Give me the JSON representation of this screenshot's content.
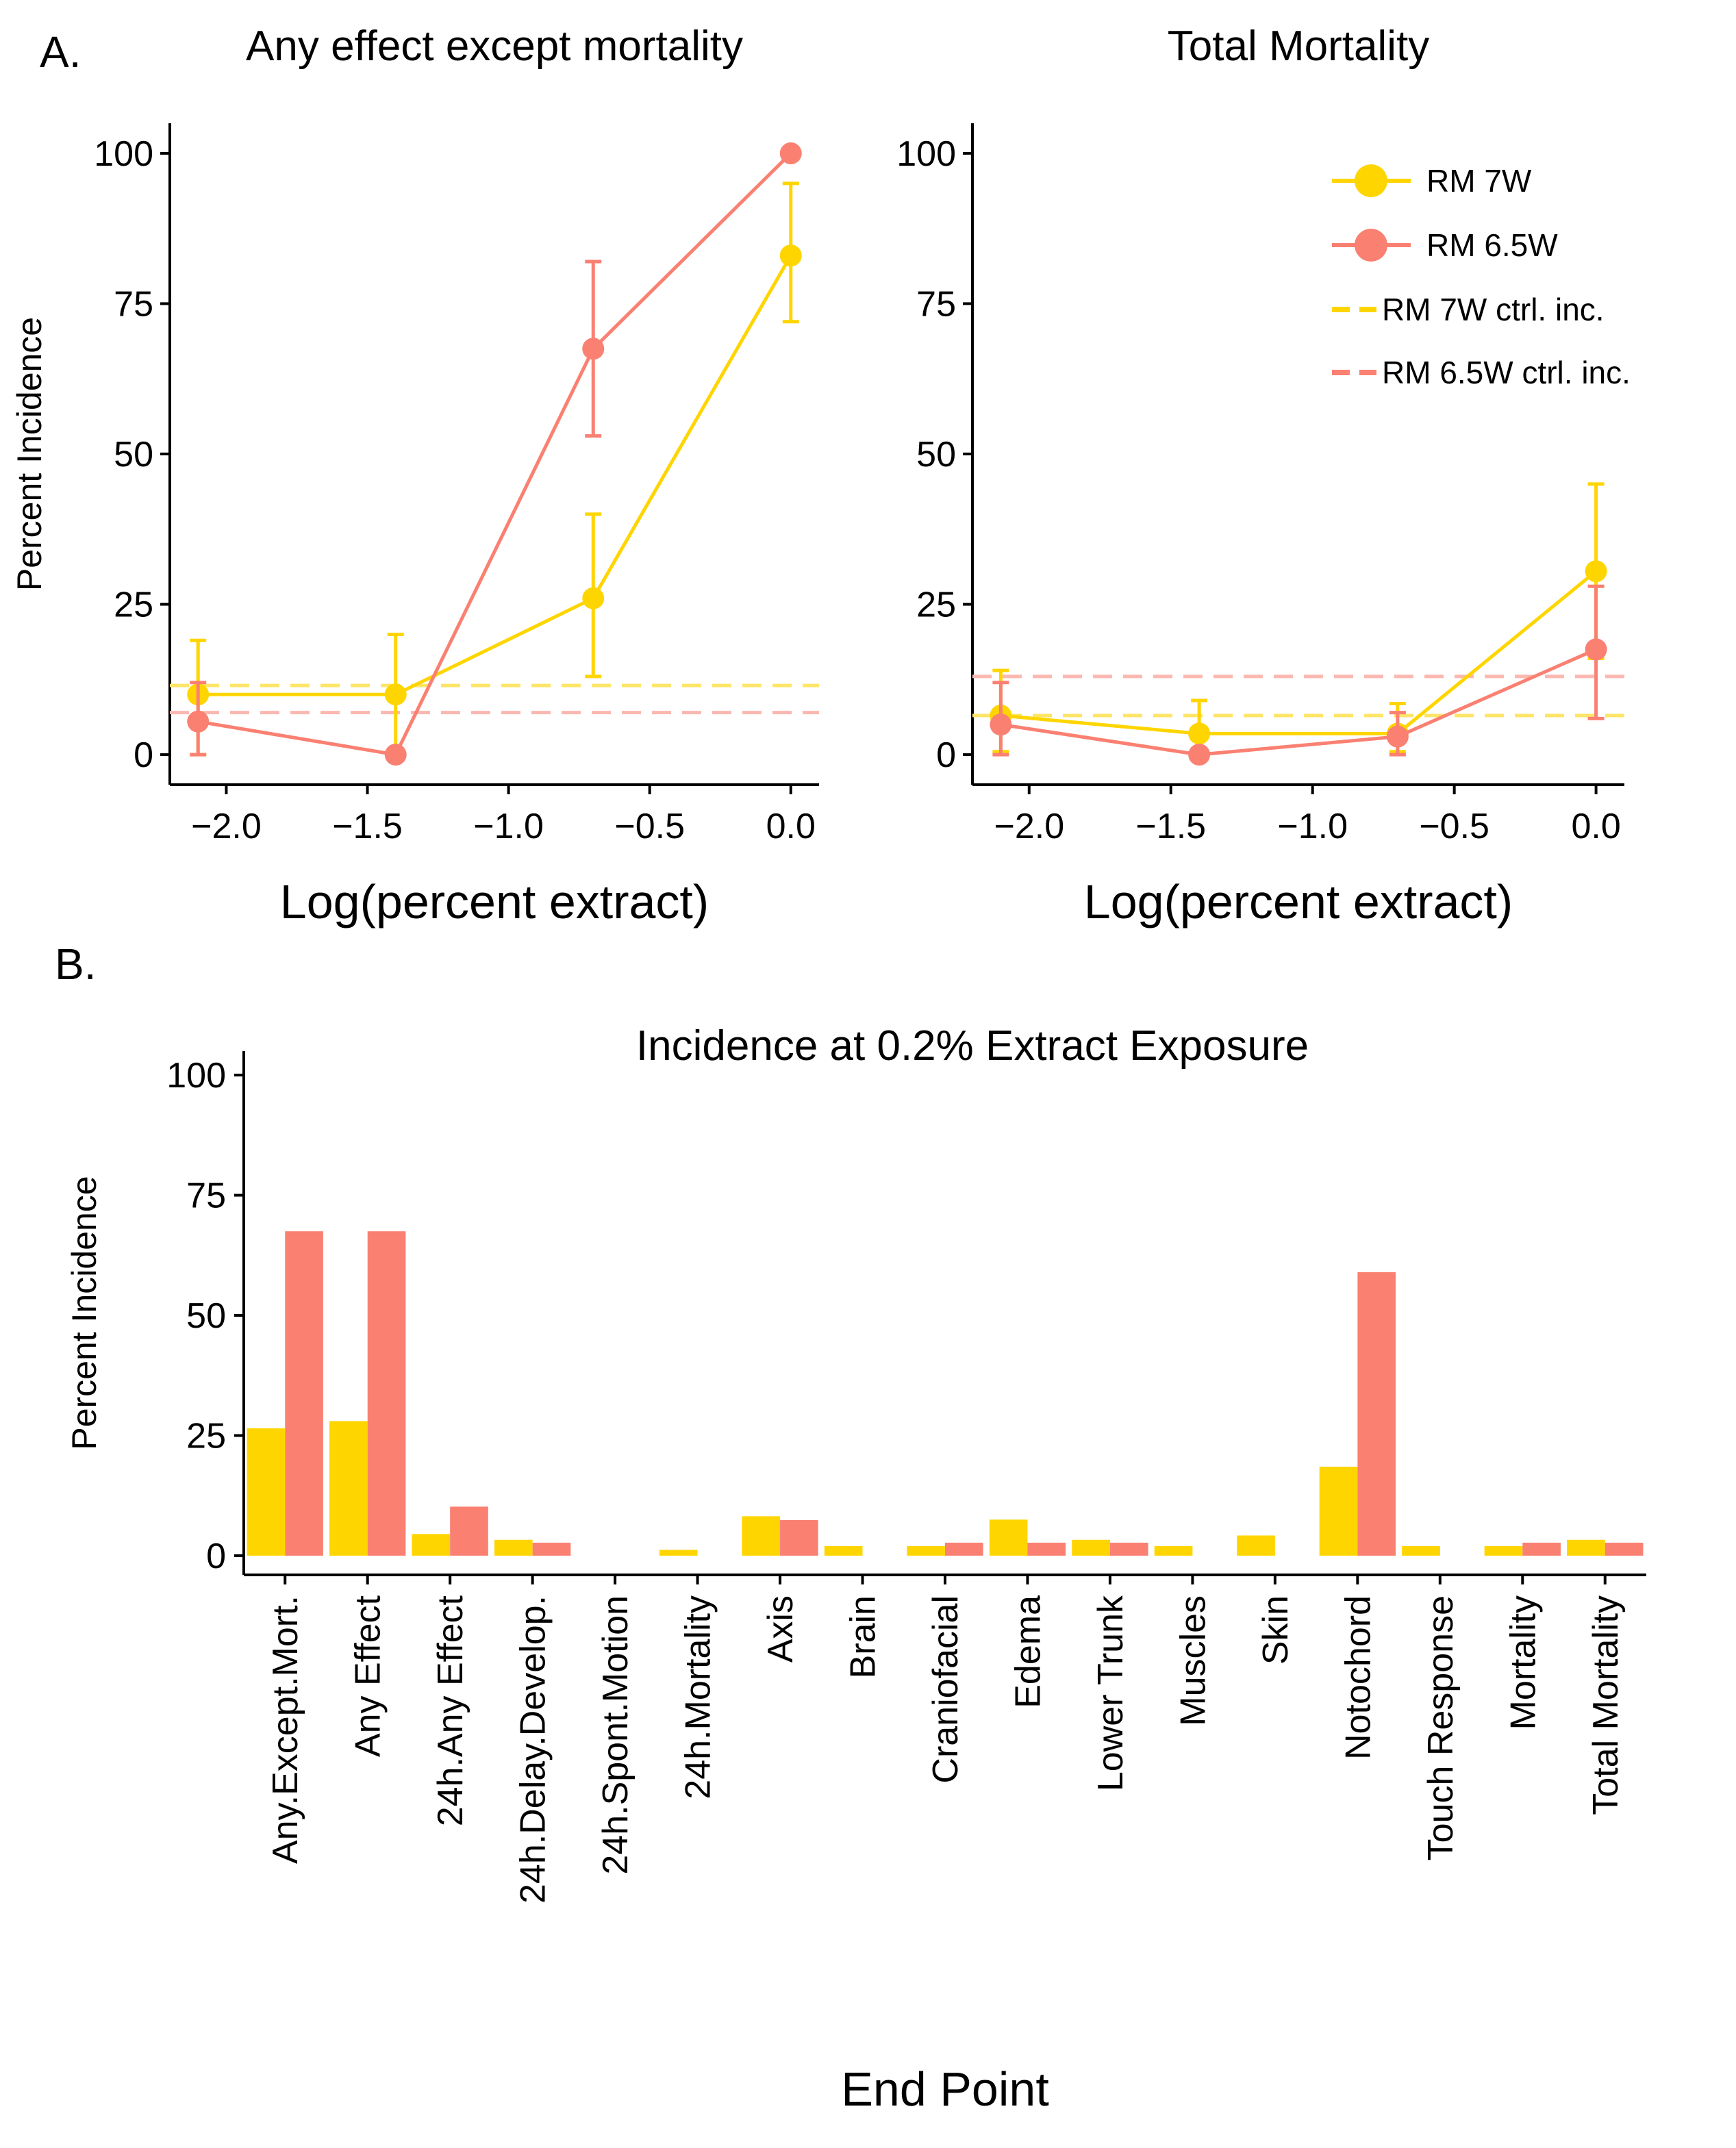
{
  "colors": {
    "rm7w": "#FFD500",
    "rm65w": "#FA8072",
    "rm7w_ctrl": "#FFE566",
    "rm65w_ctrl": "#FBB8B0",
    "axis": "#000000"
  },
  "panel_a": {
    "label": "A.",
    "legend": {
      "items": [
        "RM 7W",
        "RM 6.5W",
        "RM 7W ctrl. inc.",
        "RM 6.5W ctrl. inc."
      ]
    }
  },
  "panel_b": {
    "label": "B."
  },
  "chart_data": [
    {
      "type": "line",
      "title": "Any effect except mortality",
      "xlabel": "Log(percent extract)",
      "ylabel": "Percent Incidence",
      "xlim": [
        -2.2,
        0.1
      ],
      "ylim": [
        -5,
        105
      ],
      "xticks": [
        -2.0,
        -1.5,
        -1.0,
        -0.5,
        0.0
      ],
      "xtick_labels": [
        "−2.0",
        "−1.5",
        "−1.0",
        "−0.5",
        "0.0"
      ],
      "yticks": [
        0,
        25,
        50,
        75,
        100
      ],
      "ytick_labels": [
        "0",
        "25",
        "50",
        "75",
        "100"
      ],
      "series": [
        {
          "name": "RM 7W",
          "x": [
            -2.1,
            -1.4,
            -0.7,
            0.0
          ],
          "y": [
            10,
            10,
            26,
            83
          ],
          "lower": [
            0,
            0,
            13,
            72
          ],
          "upper": [
            19,
            20,
            40,
            95
          ]
        },
        {
          "name": "RM 6.5W",
          "x": [
            -2.1,
            -1.4,
            -0.7,
            0.0
          ],
          "y": [
            5.5,
            0,
            67.5,
            100
          ],
          "lower": [
            0,
            0,
            53,
            100
          ],
          "upper": [
            12,
            0,
            82,
            100
          ]
        }
      ],
      "control_lines": [
        {
          "name": "RM 7W ctrl. inc.",
          "y": 11.5
        },
        {
          "name": "RM 6.5W ctrl. inc.",
          "y": 7
        }
      ]
    },
    {
      "type": "line",
      "title": "Total Mortality",
      "xlabel": "Log(percent extract)",
      "ylabel": "",
      "xlim": [
        -2.2,
        0.1
      ],
      "ylim": [
        -5,
        105
      ],
      "xticks": [
        -2.0,
        -1.5,
        -1.0,
        -0.5,
        0.0
      ],
      "xtick_labels": [
        "−2.0",
        "−1.5",
        "−1.0",
        "−0.5",
        "0.0"
      ],
      "yticks": [
        0,
        25,
        50,
        75,
        100
      ],
      "ytick_labels": [
        "0",
        "25",
        "50",
        "75",
        "100"
      ],
      "series": [
        {
          "name": "RM 7W",
          "x": [
            -2.1,
            -1.4,
            -0.7,
            0.0
          ],
          "y": [
            6.5,
            3.5,
            3.5,
            30.5
          ],
          "lower": [
            0.5,
            0,
            0.5,
            16
          ],
          "upper": [
            14,
            9,
            8.5,
            45
          ]
        },
        {
          "name": "RM 6.5W",
          "x": [
            -2.1,
            -1.4,
            -0.7,
            0.0
          ],
          "y": [
            5,
            0,
            3,
            17.5
          ],
          "lower": [
            0,
            0,
            0,
            6
          ],
          "upper": [
            12,
            0,
            7,
            28
          ]
        }
      ],
      "control_lines": [
        {
          "name": "RM 7W ctrl. inc.",
          "y": 6.5
        },
        {
          "name": "RM 6.5W ctrl. inc.",
          "y": 13
        }
      ]
    },
    {
      "type": "bar",
      "title": "Incidence at 0.2% Extract Exposure",
      "xlabel": "End Point",
      "ylabel": "Percent Incidence",
      "ylim": [
        -4,
        105
      ],
      "yticks": [
        0,
        25,
        50,
        75,
        100
      ],
      "ytick_labels": [
        "0",
        "25",
        "50",
        "75",
        "100"
      ],
      "categories": [
        "Any.Except.Mort.",
        "Any Effect",
        "24h.Any Effect",
        "24h.Delay.Develop.",
        "24h.Spont.Motion",
        "24h.Mortality",
        "Axis",
        "Brain",
        "Craniofacial",
        "Edema",
        "Lower Trunk",
        "Muscles",
        "Skin",
        "Notochord",
        "Touch Response",
        "Mortality",
        "Total Mortality"
      ],
      "series": [
        {
          "name": "RM 7W",
          "values": [
            26.5,
            28,
            4.5,
            3.3,
            0,
            1.2,
            8.2,
            2,
            2,
            7.5,
            3.3,
            2,
            4.2,
            18.5,
            2,
            2,
            3.3
          ]
        },
        {
          "name": "RM 6.5W",
          "values": [
            67.5,
            67.5,
            10.2,
            2.7,
            0,
            0,
            7.4,
            0,
            2.7,
            2.7,
            2.7,
            0,
            0,
            59,
            0,
            2.7,
            2.7
          ]
        }
      ]
    }
  ]
}
